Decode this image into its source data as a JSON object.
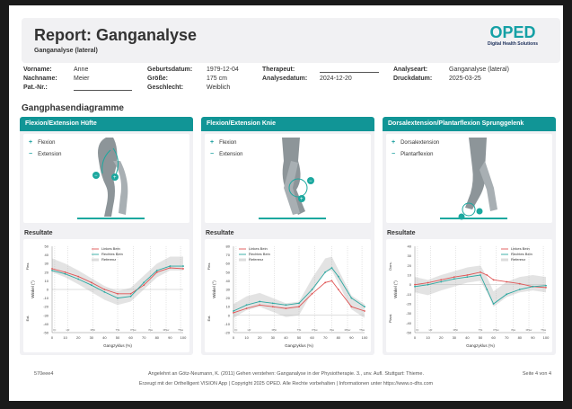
{
  "header": {
    "title": "Report: Ganganalyse",
    "subtitle": "Ganganalyse (lateral)",
    "logo_word": "OPED",
    "logo_sub": "Digital Health Solutions"
  },
  "info": {
    "vorname_label": "Vorname:",
    "vorname": "Anne",
    "nachname_label": "Nachname:",
    "nachname": "Meier",
    "patnr_label": "Pat.-Nr.:",
    "geburt_label": "Geburtsdatum:",
    "geburt": "1979-12-04",
    "groesse_label": "Größe:",
    "groesse": "175 cm",
    "geschlecht_label": "Geschlecht:",
    "geschlecht": "Weiblich",
    "therapeut_label": "Therapeut:",
    "analysedatum_label": "Analysedatum:",
    "analysedatum": "2024-12-20",
    "analyseart_label": "Analyseart:",
    "analyseart": "Ganganalyse (lateral)",
    "druckdatum_label": "Druckdatum:",
    "druckdatum": "2025-03-25"
  },
  "section_title": "Gangphasendiagramme",
  "panels": [
    {
      "title": "Flexion/Extension Hüfte",
      "plus": "Flexion",
      "minus": "Extension",
      "results": "Resultate"
    },
    {
      "title": "Flexion/Extension Knie",
      "plus": "Flexion",
      "minus": "Extension",
      "results": "Resultate"
    },
    {
      "title": "Dorsalextension/Plantarflexion Sprunggelenk",
      "plus": "Dorsalextension",
      "minus": "Plantarflexion",
      "results": "Resultate"
    }
  ],
  "chart_data": [
    {
      "type": "line",
      "title": "",
      "xlabel": "Gangzyklus (%)",
      "ylabel": "Winkel (°)",
      "ylabel_pos": "Flex.",
      "ylabel_neg": "Ext.",
      "xlim": [
        0,
        100
      ],
      "ylim": [
        -50,
        50
      ],
      "yticks": [
        -50,
        -40,
        -30,
        -20,
        -10,
        0,
        10,
        20,
        30,
        40,
        50
      ],
      "xticks": [
        0,
        10,
        20,
        30,
        40,
        50,
        60,
        70,
        80,
        90,
        100
      ],
      "legend_position": "top-center",
      "series": [
        {
          "name": "Linkes Bein",
          "color": "#e05555",
          "x": [
            0,
            10,
            20,
            30,
            40,
            50,
            60,
            70,
            80,
            90,
            100
          ],
          "values": [
            24,
            20,
            15,
            8,
            0,
            -5,
            -5,
            5,
            20,
            25,
            24
          ]
        },
        {
          "name": "Rechtes Bein",
          "color": "#2aa7a0",
          "x": [
            0,
            10,
            20,
            30,
            40,
            50,
            60,
            70,
            80,
            90,
            100
          ],
          "values": [
            22,
            18,
            12,
            5,
            -3,
            -10,
            -8,
            8,
            22,
            27,
            27
          ]
        },
        {
          "name": "Referenz",
          "color": "#d9d9d9",
          "x": [
            0,
            10,
            20,
            30,
            40,
            50,
            60,
            70,
            80,
            90,
            100
          ],
          "values": [
            28,
            22,
            14,
            5,
            -4,
            -10,
            -6,
            8,
            22,
            30,
            30
          ]
        }
      ],
      "phase_labels": [
        "IC",
        "LR",
        "MSt",
        "TSt",
        "PSw",
        "ISw",
        "MSw",
        "TSw"
      ]
    },
    {
      "type": "line",
      "title": "",
      "xlabel": "Gangzyklus (%)",
      "ylabel": "Winkel (°)",
      "ylabel_pos": "Flex.",
      "ylabel_neg": "Ext.",
      "xlim": [
        0,
        100
      ],
      "ylim": [
        -20,
        80
      ],
      "yticks": [
        -20,
        -10,
        0,
        10,
        20,
        30,
        40,
        50,
        60,
        70,
        80
      ],
      "xticks": [
        0,
        10,
        20,
        30,
        40,
        50,
        60,
        70,
        80,
        90,
        100
      ],
      "legend_position": "top-left",
      "series": [
        {
          "name": "Linkes Bein",
          "color": "#e05555",
          "x": [
            0,
            10,
            20,
            30,
            40,
            50,
            60,
            70,
            75,
            80,
            90,
            100
          ],
          "values": [
            3,
            8,
            12,
            10,
            8,
            10,
            25,
            38,
            40,
            30,
            10,
            5
          ]
        },
        {
          "name": "Rechtes Bein",
          "color": "#2aa7a0",
          "x": [
            0,
            10,
            20,
            30,
            40,
            50,
            60,
            70,
            75,
            80,
            90,
            100
          ],
          "values": [
            5,
            12,
            16,
            14,
            12,
            14,
            30,
            50,
            55,
            45,
            20,
            10
          ]
        },
        {
          "name": "Referenz",
          "color": "#d9d9d9",
          "x": [
            0,
            10,
            20,
            30,
            40,
            50,
            60,
            70,
            75,
            80,
            90,
            100
          ],
          "values": [
            5,
            14,
            18,
            12,
            6,
            8,
            35,
            58,
            60,
            45,
            15,
            5
          ]
        }
      ],
      "phase_labels": [
        "IC",
        "LR",
        "MSt",
        "TSt",
        "PSw",
        "ISw",
        "MSw",
        "TSw"
      ]
    },
    {
      "type": "line",
      "title": "",
      "xlabel": "Gangzyklus (%)",
      "ylabel": "Winkel (°)",
      "ylabel_pos": "Dors.",
      "ylabel_neg": "Plant.",
      "xlim": [
        0,
        100
      ],
      "ylim": [
        -50,
        40
      ],
      "yticks": [
        -50,
        -40,
        -30,
        -20,
        -10,
        0,
        10,
        20,
        30,
        40
      ],
      "xticks": [
        0,
        10,
        20,
        30,
        40,
        50,
        60,
        70,
        80,
        90,
        100
      ],
      "legend_position": "top-right",
      "series": [
        {
          "name": "Linkes Bein",
          "color": "#e05555",
          "x": [
            0,
            10,
            20,
            30,
            40,
            50,
            55,
            60,
            70,
            80,
            90,
            100
          ],
          "values": [
            0,
            2,
            5,
            8,
            10,
            13,
            10,
            5,
            3,
            1,
            -2,
            -3
          ]
        },
        {
          "name": "Rechtes Bein",
          "color": "#2aa7a0",
          "x": [
            0,
            10,
            20,
            30,
            40,
            50,
            55,
            60,
            70,
            80,
            90,
            100
          ],
          "values": [
            -2,
            0,
            3,
            6,
            8,
            10,
            -5,
            -20,
            -10,
            -5,
            -2,
            -1
          ]
        },
        {
          "name": "Referenz",
          "color": "#d9d9d9",
          "x": [
            0,
            10,
            20,
            30,
            40,
            50,
            55,
            60,
            70,
            80,
            90,
            100
          ],
          "values": [
            0,
            -3,
            2,
            6,
            10,
            12,
            0,
            -15,
            -5,
            0,
            2,
            0
          ]
        }
      ],
      "phase_labels": [
        "IC",
        "LR",
        "MSt",
        "TSt",
        "PSw",
        "ISw",
        "MSw",
        "TSw"
      ]
    }
  ],
  "footer": {
    "id": "570eee4",
    "citation": "Angelehnt an Götz-Neumann, K. (2011) Gehen verstehen: Ganganalyse in der Physiotherapie. 3., unv. Aufl. Stuttgart: Thieme.",
    "copyright": "Erzeugt mit der Orthelligent VISION App | Copyright 2025 OPED. Alle Rechte vorbehalten | Informationen unter https://www.o-dhs.com",
    "page": "Seite 4 von 4"
  }
}
